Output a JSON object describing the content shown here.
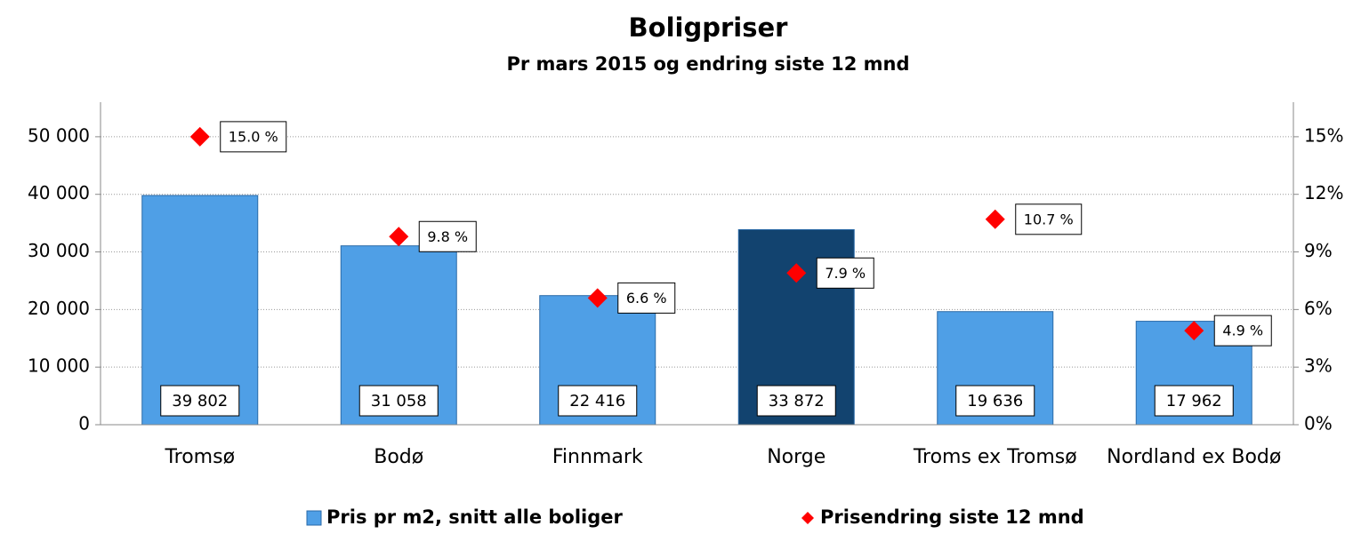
{
  "chart_data": {
    "type": "bar",
    "title": "Boligpriser",
    "subtitle": "Pr mars 2015 og endring siste 12 mnd",
    "categories": [
      "Tromsø",
      "Bodø",
      "Finnmark",
      "Norge",
      "Troms ex Tromsø",
      "Nordland ex Bodø"
    ],
    "series": [
      {
        "name": "Pris pr m2, snitt alle boliger",
        "type": "bar",
        "color": "#4f9fe6",
        "colors": [
          "#4f9fe6",
          "#4f9fe6",
          "#4f9fe6",
          "#12436f",
          "#4f9fe6",
          "#4f9fe6"
        ],
        "values": [
          39802,
          31058,
          22416,
          33872,
          19636,
          17962
        ],
        "value_labels": [
          "39 802",
          "31 058",
          "22 416",
          "33 872",
          "19 636",
          "17 962"
        ]
      },
      {
        "name": "Prisendring siste 12 mnd",
        "type": "scatter",
        "axis": "y2",
        "color": "#ff0000",
        "values": [
          15.0,
          9.8,
          6.6,
          7.9,
          10.7,
          4.9
        ],
        "value_labels": [
          "15.0 %",
          "9.8 %",
          "6.6 %",
          "7.9 %",
          "10.7 %",
          "4.9 %"
        ]
      }
    ],
    "ylim": [
      0,
      56000
    ],
    "yticks": [
      0,
      {
        "value": 10000,
        "label": "10 000"
      },
      {
        "value": 20000,
        "label": "20 000"
      },
      {
        "value": 30000,
        "label": "30 000"
      },
      {
        "value": 40000,
        "label": "40 000"
      },
      {
        "value": 50000,
        "label": "50 000"
      }
    ],
    "y2lim": [
      0,
      16.8
    ],
    "y2ticks": [
      {
        "value": 0,
        "label": "0%"
      },
      {
        "value": 3,
        "label": "3%"
      },
      {
        "value": 6,
        "label": "6%"
      },
      {
        "value": 9,
        "label": "9%"
      },
      {
        "value": 12,
        "label": "12%"
      },
      {
        "value": 15,
        "label": "15%"
      }
    ],
    "grid": true,
    "legend": "bottom"
  }
}
